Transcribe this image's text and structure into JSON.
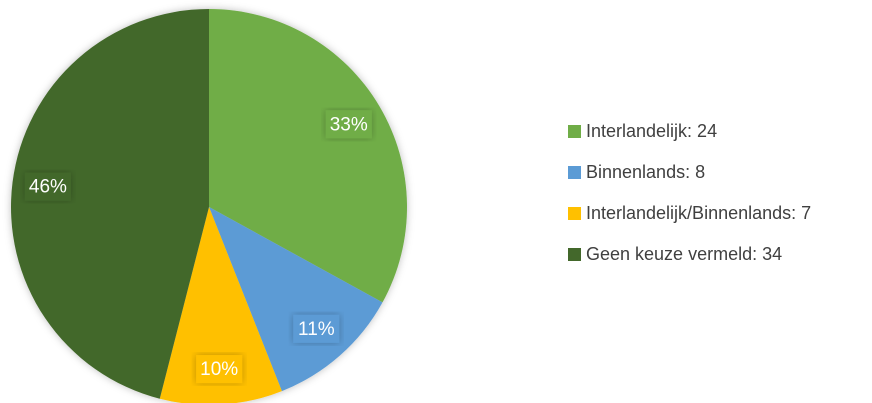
{
  "chart_data": {
    "type": "pie",
    "categories": [
      "Interlandelijk: 24",
      "Binnenlands: 8",
      "Interlandelijk/Binnenlands: 7",
      "Geen keuze vermeld: 34"
    ],
    "values": [
      33,
      11,
      10,
      46
    ],
    "value_labels": [
      "33%",
      "11%",
      "10%",
      "46%"
    ],
    "colors": [
      "#70ad47",
      "#5b9bd5",
      "#ffc000",
      "#43682b"
    ],
    "legend": "right"
  }
}
